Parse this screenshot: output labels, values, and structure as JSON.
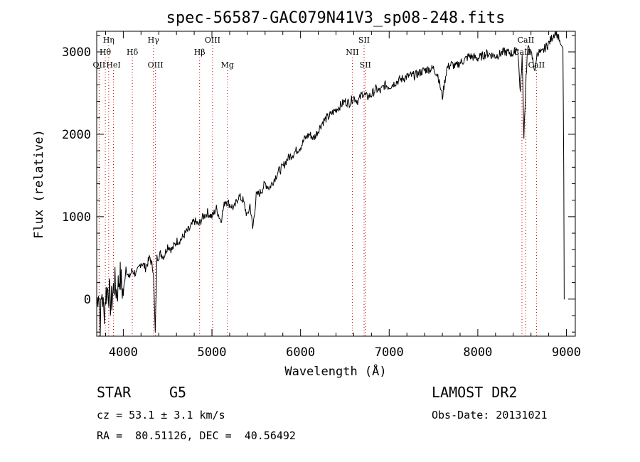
{
  "chart_data": {
    "type": "line",
    "title": "spec-56587-GAC079N41V3_sp08-248.fits",
    "xlabel": "Wavelength (Å)",
    "ylabel": "Flux (relative)",
    "xlim": [
      3700,
      9100
    ],
    "ylim": [
      -450,
      3250
    ],
    "xticks": [
      4000,
      5000,
      6000,
      7000,
      8000,
      9000
    ],
    "yticks": [
      0,
      1000,
      2000,
      3000
    ],
    "grid": false,
    "line_color": "#000000",
    "marker_color": "#cc0000",
    "series": [
      {
        "x": [
          3700,
          3720,
          3740,
          3760,
          3780,
          3800,
          3830,
          3860,
          3900,
          3930,
          3960,
          4000,
          4030,
          4060,
          4100,
          4150,
          4200,
          4250,
          4300,
          4340,
          4360,
          4380,
          4420,
          4460,
          4500,
          4550,
          4600,
          4650,
          4700,
          4750,
          4800,
          4850,
          4900,
          4950,
          5000,
          5050,
          5100,
          5150,
          5200,
          5250,
          5300,
          5350,
          5400,
          5430,
          5460,
          5500,
          5550,
          5600,
          5650,
          5700,
          5750,
          5800,
          5850,
          5900,
          5950,
          6000,
          6050,
          6100,
          6150,
          6200,
          6250,
          6300,
          6350,
          6400,
          6450,
          6500,
          6550,
          6600,
          6650,
          6700,
          6750,
          6800,
          6850,
          6900,
          6950,
          7000,
          7100,
          7200,
          7300,
          7400,
          7500,
          7550,
          7600,
          7650,
          7700,
          7750,
          7800,
          7850,
          7900,
          8000,
          8100,
          8200,
          8300,
          8400,
          8450,
          8480,
          8500,
          8520,
          8545,
          8560,
          8580,
          8620,
          8650,
          8662,
          8680,
          8720,
          8760,
          8800,
          8850,
          8880,
          8900,
          8930,
          8960,
          8970,
          8975,
          8980
        ],
        "y": [
          -80,
          150,
          -300,
          100,
          -200,
          50,
          150,
          -80,
          200,
          80,
          300,
          50,
          400,
          250,
          350,
          300,
          450,
          380,
          500,
          350,
          -420,
          500,
          550,
          520,
          650,
          600,
          700,
          720,
          800,
          850,
          950,
          900,
          1000,
          1050,
          1000,
          1100,
          950,
          1200,
          1150,
          1100,
          1250,
          1200,
          1000,
          1150,
          850,
          1250,
          1300,
          1400,
          1350,
          1450,
          1550,
          1600,
          1700,
          1750,
          1800,
          1850,
          1950,
          2000,
          1950,
          2050,
          2150,
          2200,
          2250,
          2300,
          2350,
          2400,
          2380,
          2450,
          2400,
          2500,
          2450,
          2480,
          2550,
          2520,
          2600,
          2580,
          2650,
          2700,
          2720,
          2780,
          2800,
          2720,
          2450,
          2800,
          2850,
          2820,
          2870,
          2900,
          2950,
          2920,
          2980,
          2950,
          3000,
          2980,
          3050,
          2500,
          2950,
          2000,
          2700,
          3000,
          3050,
          2900,
          2750,
          2950,
          3000,
          2980,
          3050,
          3100,
          3200,
          3250,
          3200,
          3100,
          3050,
          1500,
          0,
          0
        ]
      }
    ],
    "lines": [
      {
        "label": "Hη",
        "x": 3835,
        "row": 1
      },
      {
        "label": "Hθ",
        "x": 3797,
        "row": 2
      },
      {
        "label": "OII",
        "x": 3727,
        "row": 3
      },
      {
        "label": "HeI",
        "x": 3889,
        "row": 3
      },
      {
        "label": "Hδ",
        "x": 4102,
        "row": 2
      },
      {
        "label": "Hγ",
        "x": 4340,
        "row": 1
      },
      {
        "label": "OIII",
        "x": 4363,
        "row": 3
      },
      {
        "label": "Hβ",
        "x": 4861,
        "row": 2
      },
      {
        "label": "OIII",
        "x": 5007,
        "row": 1
      },
      {
        "label": "Mg",
        "x": 5175,
        "row": 3
      },
      {
        "label": "NII",
        "x": 6584,
        "row": 2
      },
      {
        "label": "SII",
        "x": 6717,
        "row": 1
      },
      {
        "label": "SII",
        "x": 6731,
        "row": 3
      },
      {
        "label": "CaII",
        "x": 8498,
        "row": 2
      },
      {
        "label": "CaII",
        "x": 8542,
        "row": 1
      },
      {
        "label": "CaII",
        "x": 8662,
        "row": 3
      }
    ]
  },
  "footer": {
    "object_class": "STAR",
    "subclass": "G5",
    "survey": "LAMOST DR2",
    "cz": "cz = 53.1 ± 3.1 km/s",
    "obs_date": "Obs-Date: 20131021",
    "coords": "RA =  80.51126, DEC =  40.56492"
  }
}
